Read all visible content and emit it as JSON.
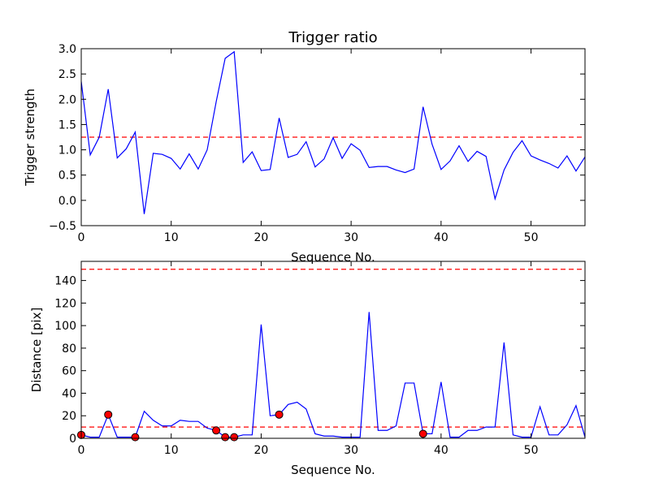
{
  "chart_data": [
    {
      "type": "line",
      "title": "Trigger ratio",
      "xlabel": "Sequence No.",
      "ylabel": "Trigger strength",
      "xlim": [
        0,
        56
      ],
      "ylim": [
        -0.5,
        3.0
      ],
      "xticks": [
        0,
        10,
        20,
        30,
        40,
        50
      ],
      "xtick_labels": [
        "0",
        "10",
        "20",
        "30",
        "40",
        "50"
      ],
      "yticks": [
        -0.5,
        0.0,
        0.5,
        1.0,
        1.5,
        2.0,
        2.5,
        3.0
      ],
      "ytick_labels": [
        "−0.5",
        "0.0",
        "0.5",
        "1.0",
        "1.5",
        "2.0",
        "2.5",
        "3.0"
      ],
      "grid": false,
      "series": [
        {
          "color": "#0000ff",
          "x": [
            0,
            1,
            2,
            3,
            4,
            5,
            6,
            7,
            8,
            9,
            10,
            11,
            12,
            13,
            14,
            15,
            16,
            17,
            18,
            19,
            20,
            21,
            22,
            23,
            24,
            25,
            26,
            27,
            28,
            29,
            30,
            31,
            32,
            33,
            34,
            35,
            36,
            37,
            38,
            39,
            40,
            41,
            42,
            43,
            44,
            45,
            46,
            47,
            48,
            49,
            50,
            51,
            52,
            53,
            54,
            55,
            56
          ],
          "values": [
            2.35,
            0.9,
            1.25,
            2.2,
            0.84,
            1.02,
            1.35,
            -0.27,
            0.93,
            0.91,
            0.83,
            0.62,
            0.92,
            0.62,
            1.0,
            1.95,
            2.81,
            2.94,
            0.75,
            0.96,
            0.59,
            0.61,
            1.63,
            0.85,
            0.91,
            1.16,
            0.66,
            0.82,
            1.24,
            0.83,
            1.12,
            0.99,
            0.65,
            0.67,
            0.67,
            0.6,
            0.55,
            0.62,
            1.85,
            1.11,
            0.61,
            0.78,
            1.08,
            0.77,
            0.97,
            0.87,
            0.03,
            0.6,
            0.95,
            1.18,
            0.88,
            0.8,
            0.73,
            0.64,
            0.88,
            0.58,
            0.86
          ]
        }
      ],
      "reference_lines": [
        {
          "axis": "y",
          "value": 1.25,
          "color": "#ff0000",
          "style": "dashed"
        }
      ]
    },
    {
      "type": "line",
      "title": "",
      "xlabel": "Sequence No.",
      "ylabel": "Distance [pix]",
      "xlim": [
        0,
        56
      ],
      "ylim": [
        0,
        157
      ],
      "xticks": [
        0,
        10,
        20,
        30,
        40,
        50
      ],
      "xtick_labels": [
        "0",
        "10",
        "20",
        "30",
        "40",
        "50"
      ],
      "yticks": [
        0,
        20,
        40,
        60,
        80,
        100,
        120,
        140
      ],
      "ytick_labels": [
        "0",
        "20",
        "40",
        "60",
        "80",
        "100",
        "120",
        "140"
      ],
      "grid": false,
      "series": [
        {
          "color": "#0000ff",
          "x": [
            0,
            1,
            2,
            3,
            4,
            5,
            6,
            7,
            8,
            9,
            10,
            11,
            12,
            13,
            14,
            15,
            16,
            17,
            18,
            19,
            20,
            21,
            22,
            23,
            24,
            25,
            26,
            27,
            28,
            29,
            30,
            31,
            32,
            33,
            34,
            35,
            36,
            37,
            38,
            39,
            40,
            41,
            42,
            43,
            44,
            45,
            46,
            47,
            48,
            49,
            50,
            51,
            52,
            53,
            54,
            55,
            56
          ],
          "values": [
            3,
            1,
            1,
            21,
            1,
            1,
            1,
            24,
            16,
            11,
            11,
            16,
            15,
            15,
            9,
            7,
            1,
            1,
            3,
            3,
            101,
            20,
            21,
            30,
            32,
            26,
            4,
            2,
            2,
            1,
            1,
            1,
            112,
            7,
            7,
            11,
            49,
            49,
            4,
            4,
            50,
            1,
            1,
            7,
            7,
            10,
            10,
            85,
            3,
            1,
            1,
            28,
            3,
            3,
            12,
            29,
            1
          ]
        }
      ],
      "highlighted_points": {
        "color": "#ff0000",
        "x": [
          0,
          3,
          6,
          15,
          16,
          17,
          22,
          38
        ],
        "values": [
          3,
          21,
          1,
          7,
          1,
          1,
          21,
          4
        ]
      },
      "reference_lines": [
        {
          "axis": "y",
          "value": 10,
          "color": "#ff0000",
          "style": "dashed"
        },
        {
          "axis": "y",
          "value": 150,
          "color": "#ff0000",
          "style": "dashed"
        }
      ]
    }
  ]
}
